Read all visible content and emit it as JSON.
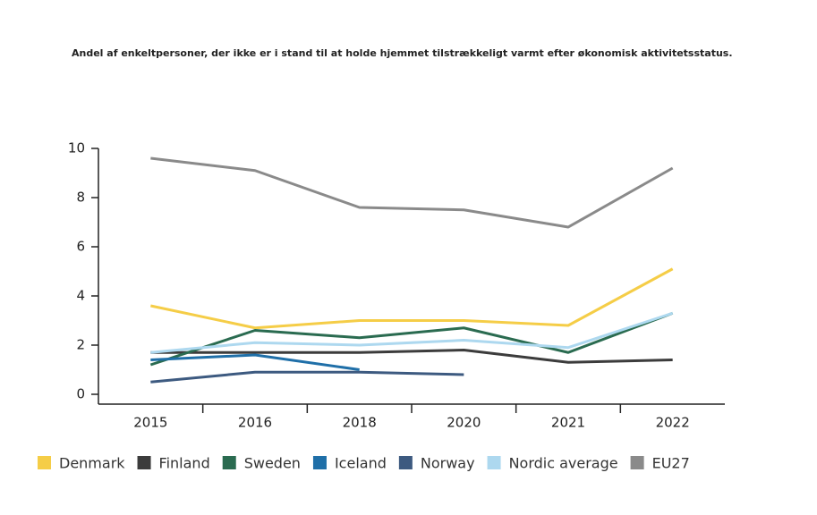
{
  "chart_data": {
    "type": "line",
    "title": "Andel af enkeltpersoner, der ikke er i stand til at holde hjemmet tilstrækkeligt varmt efter økonomisk aktivitetsstatus.",
    "categories": [
      "2015",
      "2016",
      "2018",
      "2020",
      "2021",
      "2022"
    ],
    "series": [
      {
        "name": "Denmark",
        "color": "#f5cd47",
        "values": [
          3.6,
          2.7,
          3.0,
          3.0,
          2.8,
          5.1
        ]
      },
      {
        "name": "Finland",
        "color": "#3c3c3c",
        "values": [
          1.7,
          1.7,
          1.7,
          1.8,
          1.3,
          1.4
        ]
      },
      {
        "name": "Sweden",
        "color": "#2a6b50",
        "values": [
          1.2,
          2.6,
          2.3,
          2.7,
          1.7,
          3.3
        ]
      },
      {
        "name": "Iceland",
        "color": "#1f6fa8",
        "values": [
          1.4,
          1.6,
          1.0,
          null,
          null,
          null
        ]
      },
      {
        "name": "Norway",
        "color": "#3d5a80",
        "values": [
          0.5,
          0.9,
          0.9,
          0.8,
          null,
          null
        ]
      },
      {
        "name": "Nordic average",
        "color": "#add8ef",
        "values": [
          1.7,
          2.1,
          2.0,
          2.2,
          1.9,
          3.3
        ]
      },
      {
        "name": "EU27",
        "color": "#8a8a8a",
        "values": [
          9.6,
          9.1,
          7.6,
          7.5,
          6.8,
          9.2
        ]
      }
    ],
    "ylim": [
      -0.4,
      10
    ],
    "yticks": [
      0,
      2,
      4,
      6,
      8,
      10
    ],
    "grid": false,
    "legend": "bottom"
  }
}
